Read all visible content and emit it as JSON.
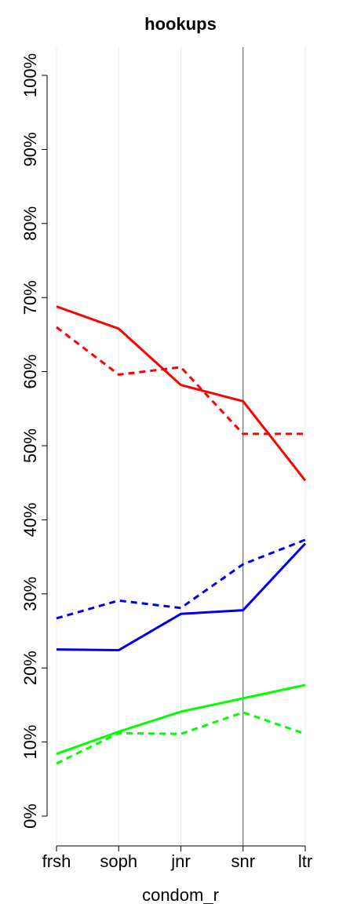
{
  "chart_data": {
    "type": "line",
    "title": "hookups",
    "xlabel": "condom_r",
    "ylabel": "",
    "categories": [
      "frsh",
      "soph",
      "jnr",
      "snr",
      "ltr"
    ],
    "ylim": [
      0,
      1
    ],
    "yticks": [
      "0%",
      "10%",
      "20%",
      "30%",
      "40%",
      "50%",
      "60%",
      "70%",
      "80%",
      "90%",
      "100%"
    ],
    "grid": "vertical",
    "reference_line_at": "snr",
    "series": [
      {
        "color": "#ff0000",
        "dash": "solid",
        "values": [
          0.688,
          0.658,
          0.582,
          0.56,
          0.453
        ]
      },
      {
        "color": "#ff0000",
        "dash": "dashed",
        "values": [
          0.66,
          0.596,
          0.606,
          0.516,
          0.516
        ]
      },
      {
        "color": "#0000ee",
        "dash": "solid",
        "values": [
          0.225,
          0.224,
          0.273,
          0.278,
          0.368
        ]
      },
      {
        "color": "#0000ee",
        "dash": "dashed",
        "values": [
          0.267,
          0.291,
          0.281,
          0.34,
          0.373
        ]
      },
      {
        "color": "#00ff00",
        "dash": "solid",
        "values": [
          0.084,
          0.114,
          0.141,
          0.159,
          0.177
        ]
      },
      {
        "color": "#00ff00",
        "dash": "dashed",
        "values": [
          0.071,
          0.112,
          0.111,
          0.14,
          0.111
        ]
      }
    ]
  }
}
